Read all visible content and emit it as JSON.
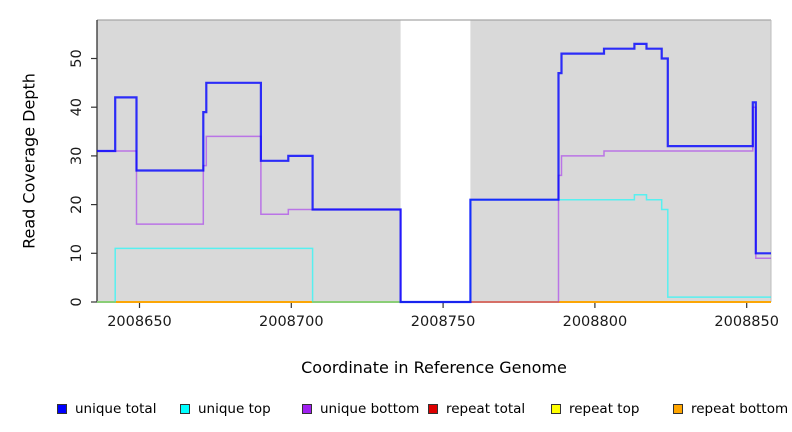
{
  "figure": {
    "background": "#ffffff"
  },
  "chart_data": {
    "type": "line",
    "subtype": "step-plot-read-coverage",
    "title": "",
    "xlabel": "Coordinate in Reference Genome",
    "ylabel": "Read Coverage Depth",
    "xlim": [
      2008636,
      2008858
    ],
    "ylim": [
      0,
      57.9
    ],
    "x_ticks": [
      2008650,
      2008700,
      2008750,
      2008800,
      2008850
    ],
    "y_ticks": [
      0,
      10,
      20,
      30,
      40,
      50
    ],
    "grid": false,
    "legend_position": "bottom",
    "plot_background": "#d9d9d9",
    "masked_region": {
      "from": 2008736,
      "to": 2008759,
      "color": "#ffffff"
    },
    "axis_color": "#333333",
    "border_color": "#a6a6a6",
    "tick_label_color": "#1a1a1a",
    "draw_order": [
      3,
      4,
      5,
      2,
      1,
      0
    ],
    "series": [
      {
        "name": "unique total",
        "color": "#0000ff",
        "opacity": 0.8,
        "width": 2.2,
        "steps": [
          [
            2008636,
            31
          ],
          [
            2008642,
            42
          ],
          [
            2008649,
            27
          ],
          [
            2008671,
            39
          ],
          [
            2008672,
            45
          ],
          [
            2008690,
            29
          ],
          [
            2008699,
            30
          ],
          [
            2008707,
            19
          ],
          [
            2008736,
            0
          ],
          [
            2008759,
            21
          ],
          [
            2008788,
            47
          ],
          [
            2008789,
            51
          ],
          [
            2008803,
            52
          ],
          [
            2008813,
            53
          ],
          [
            2008817,
            52
          ],
          [
            2008822,
            50
          ],
          [
            2008824,
            32
          ],
          [
            2008852,
            41
          ],
          [
            2008853,
            10
          ]
        ]
      },
      {
        "name": "unique top",
        "color": "#00ffff",
        "opacity": 0.6,
        "width": 1.5,
        "steps": [
          [
            2008636,
            0
          ],
          [
            2008642,
            11
          ],
          [
            2008707,
            0
          ],
          [
            2008759,
            21
          ],
          [
            2008813,
            22
          ],
          [
            2008817,
            21
          ],
          [
            2008822,
            19
          ],
          [
            2008824,
            1
          ]
        ]
      },
      {
        "name": "unique bottom",
        "color": "#a020f0",
        "opacity": 0.55,
        "width": 1.5,
        "steps": [
          [
            2008636,
            31
          ],
          [
            2008649,
            16
          ],
          [
            2008671,
            28
          ],
          [
            2008672,
            34
          ],
          [
            2008690,
            18
          ],
          [
            2008699,
            19
          ],
          [
            2008736,
            0
          ],
          [
            2008788,
            26
          ],
          [
            2008789,
            30
          ],
          [
            2008803,
            31
          ],
          [
            2008852,
            40
          ],
          [
            2008853,
            9
          ]
        ]
      },
      {
        "name": "repeat total",
        "color": "#dd0000",
        "opacity": 1,
        "width": 1.4,
        "steps": [
          [
            2008636,
            0
          ]
        ]
      },
      {
        "name": "repeat top",
        "color": "#ffff00",
        "opacity": 1,
        "width": 1.4,
        "steps": [
          [
            2008636,
            0
          ]
        ]
      },
      {
        "name": "repeat bottom",
        "color": "#ffa500",
        "opacity": 1,
        "width": 1.8,
        "steps": [
          [
            2008636,
            0
          ]
        ]
      }
    ]
  }
}
